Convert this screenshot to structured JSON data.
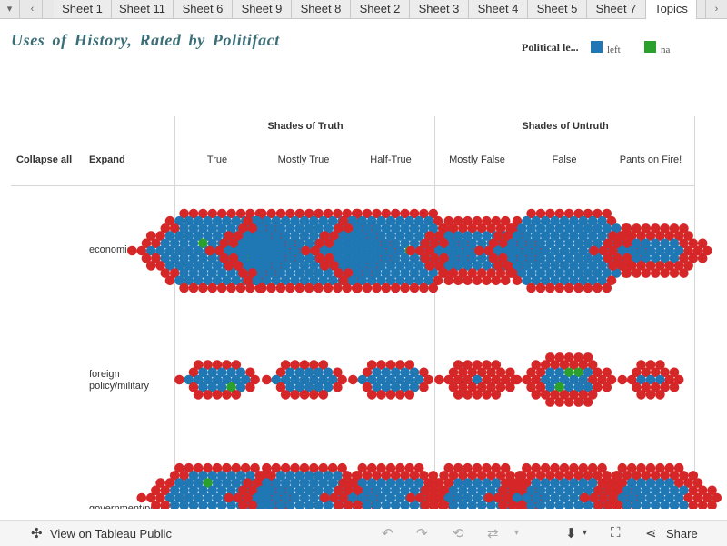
{
  "tabs": [
    "Sheet 1",
    "Sheet 11",
    "Sheet 6",
    "Sheet 9",
    "Sheet 8",
    "Sheet 2",
    "Sheet 3",
    "Sheet 4",
    "Sheet 5",
    "Sheet 7",
    "Topics"
  ],
  "active_tab": "Topics",
  "title": "Uses of History, Rated by Politifact",
  "legend": {
    "label": "Political le...",
    "items": [
      {
        "name": "left",
        "color": "#1f77b4"
      },
      {
        "name": "na",
        "color": "#2ca02c"
      }
    ]
  },
  "controls": {
    "collapse": "Collapse all",
    "expand": "Expand"
  },
  "column_groups": [
    "Shades of Truth",
    "Shades of Untruth"
  ],
  "columns": [
    "True",
    "Mostly True",
    "Half-True",
    "Mostly False",
    "False",
    "Pants on Fire!"
  ],
  "rows": [
    "economic",
    "foreign policy/military",
    "government/politics"
  ],
  "colors": {
    "red": "#d62728",
    "blue": "#1f77b4",
    "green": "#2ca02c"
  },
  "toolbar": {
    "view_label": "View on Tableau Public",
    "share_label": "Share"
  }
}
